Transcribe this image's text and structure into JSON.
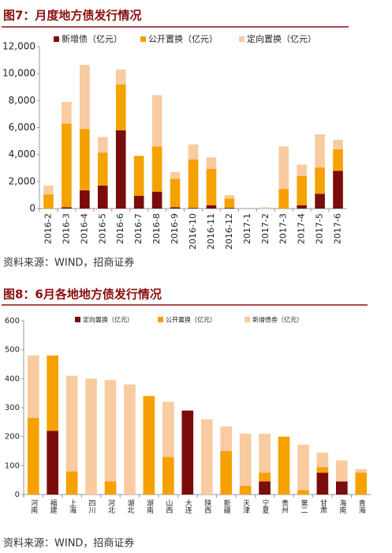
{
  "chart_data": [
    {
      "type": "bar",
      "stacked": true,
      "title": "图7：月度地方债发行情况",
      "source": "资料来源：WIND，招商证券",
      "categories": [
        "2016-2",
        "2016-3",
        "2016-4",
        "2016-5",
        "2016-6",
        "2016-7",
        "2016-8",
        "2016-9",
        "2016-10",
        "2016-11",
        "2016-12",
        "2017-1",
        "2017-2",
        "2017-3",
        "2017-4",
        "2017-5",
        "2017-6"
      ],
      "series": [
        {
          "name": "新增债（亿元）",
          "color": "#7b0c0c",
          "values": [
            0,
            100,
            1350,
            1700,
            5800,
            950,
            1250,
            100,
            50,
            250,
            50,
            0,
            0,
            0,
            250,
            1100,
            2800
          ]
        },
        {
          "name": "公开置换（亿元）",
          "color": "#f5a100",
          "values": [
            1050,
            6200,
            4550,
            2450,
            3400,
            2950,
            3350,
            2100,
            3600,
            2700,
            700,
            0,
            0,
            1450,
            2150,
            1950,
            1600
          ]
        },
        {
          "name": "定向置换（亿元）",
          "color": "#f9cba0",
          "values": [
            650,
            1600,
            4750,
            1150,
            1100,
            0,
            3800,
            500,
            1100,
            850,
            250,
            0,
            100,
            3150,
            850,
            2450,
            700
          ]
        }
      ],
      "ylim": [
        0,
        12000
      ],
      "yticks": [
        0,
        {
          "value": 2000,
          "label": "2,000"
        },
        {
          "value": 4000,
          "label": "4,000"
        },
        {
          "value": 6000,
          "label": "6,000"
        },
        {
          "value": 8000,
          "label": "8,000"
        },
        {
          "value": 10000,
          "label": "10,000"
        },
        {
          "value": 12000,
          "label": "12,000"
        }
      ],
      "grid": false,
      "legend": "top"
    },
    {
      "type": "bar",
      "stacked": true,
      "title": "图8：6月各地地方债发行情况",
      "source": "资料来源：WIND，招商证券",
      "categories": [
        "河南",
        "福建",
        "上海",
        "四川",
        "河北",
        "湖北",
        "湖南",
        "山西",
        "大连",
        "陕西",
        "新疆",
        "天津",
        "宁夏",
        "贵州",
        "第二",
        "甘肃",
        "海南",
        "青海"
      ],
      "series": [
        {
          "name": "定向置换（亿元）",
          "color": "#7b0c0c",
          "values": [
            0,
            220,
            0,
            0,
            0,
            0,
            0,
            0,
            290,
            0,
            0,
            0,
            45,
            0,
            0,
            75,
            45,
            0
          ]
        },
        {
          "name": "公开置换（亿元）",
          "color": "#f5a100",
          "values": [
            265,
            260,
            80,
            0,
            45,
            0,
            340,
            130,
            0,
            0,
            150,
            30,
            30,
            200,
            15,
            20,
            0,
            75
          ]
        },
        {
          "name": "新增债券（亿元）",
          "color": "#f9cba0",
          "values": [
            215,
            0,
            330,
            400,
            350,
            380,
            0,
            190,
            0,
            260,
            85,
            180,
            135,
            0,
            157,
            50,
            73,
            13
          ]
        }
      ],
      "ylim": [
        0,
        600
      ],
      "yticks": [
        0,
        100,
        200,
        300,
        400,
        500,
        600
      ],
      "grid": false,
      "legend": "top"
    }
  ]
}
